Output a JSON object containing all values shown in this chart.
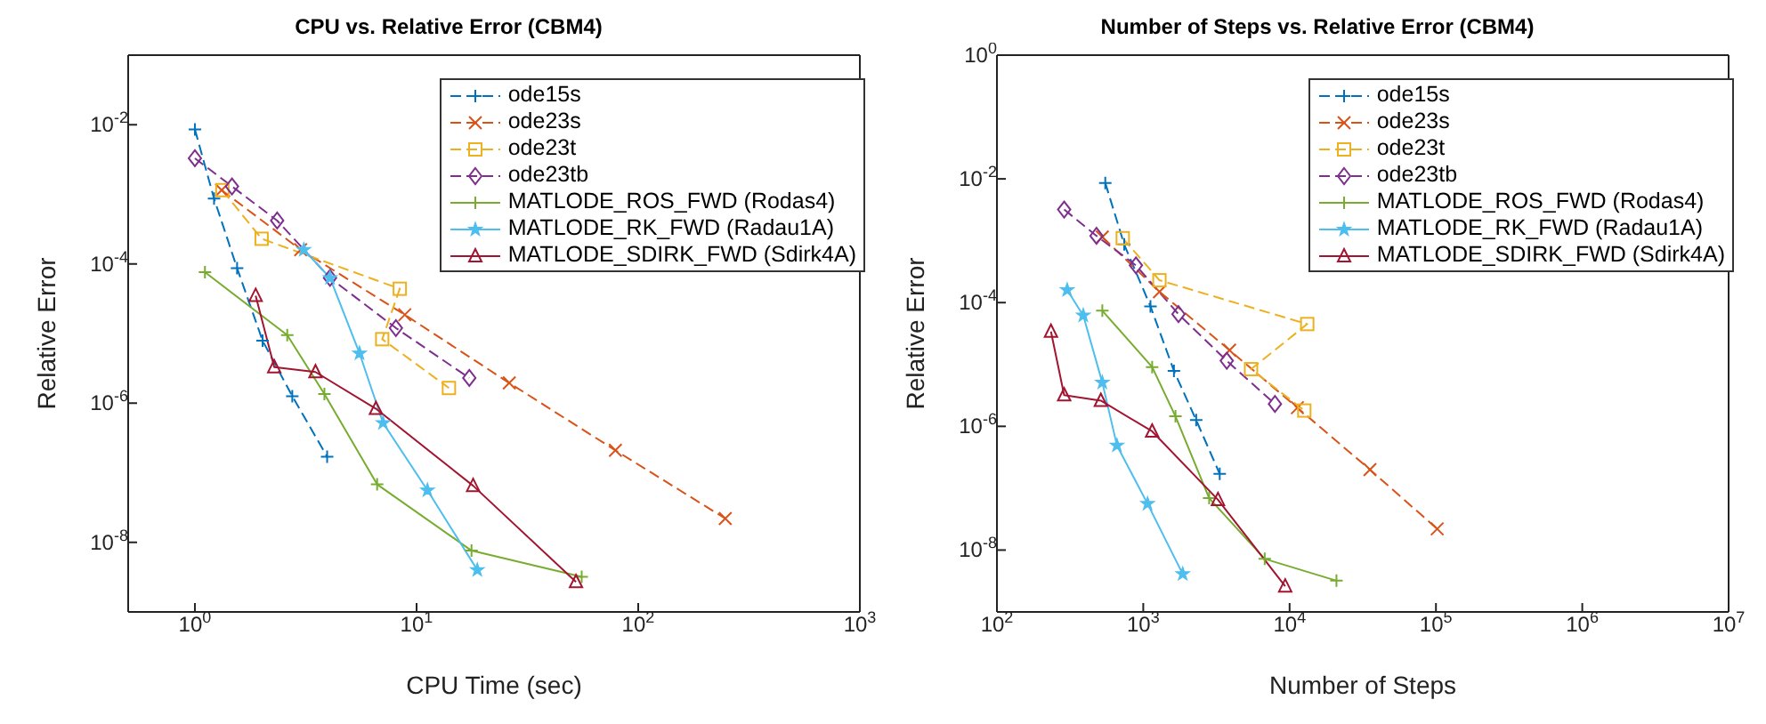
{
  "chart_data": [
    {
      "type": "line",
      "title": "CPU vs. Relative Error (CBM4)",
      "xlabel": "CPU Time (sec)",
      "ylabel": "Relative Error",
      "log": "xy",
      "legend": "top right",
      "xlim": [
        0.5,
        1000
      ],
      "xticks": [
        {
          "value": 1,
          "label": "10$^{0}$"
        },
        {
          "value": 10,
          "label": "10$^{1}$"
        },
        {
          "value": 100,
          "label": "10$^{2}$"
        },
        {
          "value": 1000,
          "label": "10$^{3}$"
        }
      ],
      "ylim": [
        1e-09,
        0.1
      ],
      "yticks": [
        {
          "value": 1e-08,
          "label": "10$^{-8}$"
        },
        {
          "value": 1e-06,
          "label": "10$^{-6}$"
        },
        {
          "value": 0.0001,
          "label": "10$^{-4}$"
        },
        {
          "value": 0.01,
          "label": "10$^{-2}$"
        }
      ],
      "series": [
        {
          "name": "ode15s",
          "color": "#0072bd",
          "marker": "plus",
          "line_style": "dashed",
          "x": [
            1.0,
            1.22,
            1.55,
            2.02,
            2.75,
            3.95
          ],
          "values": [
            0.0086,
            0.00087,
            8.7e-05,
            7.9e-06,
            1.26e-06,
            1.7e-07
          ]
        },
        {
          "name": "ode23s",
          "color": "#d95319",
          "marker": "cross",
          "line_style": "dashed",
          "x": [
            1.32,
            3.0,
            8.85,
            26.2,
            78.9,
            247
          ],
          "values": [
            0.00115,
            0.00016,
            1.86e-05,
            1.95e-06,
            2.1e-07,
            2.2e-08
          ]
        },
        {
          "name": "ode23t",
          "color": "#edb120",
          "marker": "square",
          "line_style": "dashed",
          "x": [
            null,
            1.33,
            2.0,
            8.4,
            7.0,
            14.0
          ],
          "values": [
            null,
            0.00115,
            0.00023,
            4.4e-05,
            8.3e-06,
            1.65e-06
          ]
        },
        {
          "name": "ode23tb",
          "color": "#7e2f8e",
          "marker": "diamond",
          "line_style": "dashed",
          "x": [
            1.0,
            1.47,
            2.35,
            4.07,
            8.07,
            17.3
          ],
          "values": [
            0.0033,
            0.0013,
            0.00042,
            6.3e-05,
            1.2e-05,
            2.3e-06
          ]
        },
        {
          "name": "MATLODE_ROS_FWD (Rodas4)",
          "color": "#77ac30",
          "marker": "plus",
          "line_style": "solid",
          "x": [
            1.11,
            2.61,
            3.84,
            6.64,
            17.7,
            55.6
          ],
          "values": [
            7.6e-05,
            9.5e-06,
            1.35e-06,
            6.8e-08,
            7.6e-09,
            3.2e-09
          ]
        },
        {
          "name": "MATLODE_RK_FWD (Radau1A)",
          "color": "#4dbeee",
          "marker": "star",
          "line_style": "solid",
          "x": [
            3.1,
            4.07,
            5.53,
            7.06,
            11.2,
            18.8
          ],
          "values": [
            0.00016,
            6.3e-05,
            5.2e-06,
            5.2e-07,
            5.6e-08,
            4e-09
          ]
        },
        {
          "name": "MATLODE_SDIRK_FWD (Sdirk4A)",
          "color": "#a2142f",
          "marker": "triangle",
          "line_style": "solid",
          "x": [
            1.88,
            2.28,
            3.5,
            6.56,
            18.0,
            52.4
          ],
          "values": [
            3.5e-05,
            3.3e-06,
            2.8e-06,
            8.3e-07,
            6.5e-08,
            2.7e-09
          ]
        }
      ]
    },
    {
      "type": "line",
      "title": "Number of Steps vs. Relative Error (CBM4)",
      "xlabel": "Number of Steps",
      "ylabel": "Relative Error",
      "log": "xy",
      "legend": "top right",
      "xlim": [
        100,
        10000000
      ],
      "xticks": [
        {
          "value": 100,
          "label": "10$^{2}$"
        },
        {
          "value": 1000,
          "label": "10$^{3}$"
        },
        {
          "value": 10000,
          "label": "10$^{4}$"
        },
        {
          "value": 100000,
          "label": "10$^{5}$"
        },
        {
          "value": 1000000,
          "label": "10$^{6}$"
        },
        {
          "value": 10000000,
          "label": "10$^{7}$"
        }
      ],
      "ylim": [
        1e-09,
        1
      ],
      "yticks": [
        {
          "value": 1e-08,
          "label": "10$^{-8}$"
        },
        {
          "value": 1e-06,
          "label": "10$^{-6}$"
        },
        {
          "value": 0.0001,
          "label": "10$^{-4}$"
        },
        {
          "value": 0.01,
          "label": "10$^{-2}$"
        },
        {
          "value": 1,
          "label": "10$^{0}$"
        }
      ],
      "series": [
        {
          "name": "ode15s",
          "color": "#0072bd",
          "marker": "plus",
          "line_style": "dashed",
          "x": [
            550,
            741,
            1120,
            1620,
            2300,
            3330
          ],
          "values": [
            0.0086,
            0.00087,
            8.7e-05,
            7.9e-06,
            1.26e-06,
            1.7e-07
          ]
        },
        {
          "name": "ode23s",
          "color": "#d95319",
          "marker": "cross",
          "line_style": "dashed",
          "x": [
            525,
            1290,
            3890,
            11300,
            35400,
            102000
          ],
          "values": [
            0.00115,
            0.00015,
            1.7e-05,
            2e-06,
            2e-07,
            2.2e-08
          ]
        },
        {
          "name": "ode23t",
          "color": "#edb120",
          "marker": "square",
          "line_style": "dashed",
          "x": [
            null,
            724,
            1290,
            13200,
            5450,
            12600
          ],
          "values": [
            null,
            0.0011,
            0.00023,
            4.5e-05,
            8.4e-06,
            1.8e-06
          ]
        },
        {
          "name": "ode23tb",
          "color": "#7e2f8e",
          "marker": "diamond",
          "line_style": "dashed",
          "x": [
            288,
            479,
            891,
            1740,
            3720,
            7940
          ],
          "values": [
            0.0032,
            0.0012,
            0.0004,
            6.5e-05,
            1.15e-05,
            2.3e-06
          ]
        },
        {
          "name": "MATLODE_ROS_FWD (Rodas4)",
          "color": "#77ac30",
          "marker": "plus",
          "line_style": "solid",
          "x": [
            525,
            1150,
            1660,
            2820,
            6760,
            20900
          ],
          "values": [
            7.4e-05,
            9.1e-06,
            1.45e-06,
            6.9e-08,
            7.2e-09,
            3.2e-09
          ]
        },
        {
          "name": "MATLODE_RK_FWD (Radau1A)",
          "color": "#4dbeee",
          "marker": "star",
          "line_style": "solid",
          "x": [
            302,
            389,
            525,
            661,
            1070,
            1860
          ],
          "values": [
            0.00016,
            6.2e-05,
            5.1e-06,
            4.9e-07,
            5.6e-08,
            4.1e-09
          ]
        },
        {
          "name": "MATLODE_SDIRK_FWD (Sdirk4A)",
          "color": "#a2142f",
          "marker": "triangle",
          "line_style": "solid",
          "x": [
            234,
            288,
            513,
            1150,
            3240,
            9330
          ],
          "values": [
            3.4e-05,
            3.2e-06,
            2.6e-06,
            8.3e-07,
            6.5e-08,
            2.6e-09
          ]
        }
      ]
    }
  ]
}
